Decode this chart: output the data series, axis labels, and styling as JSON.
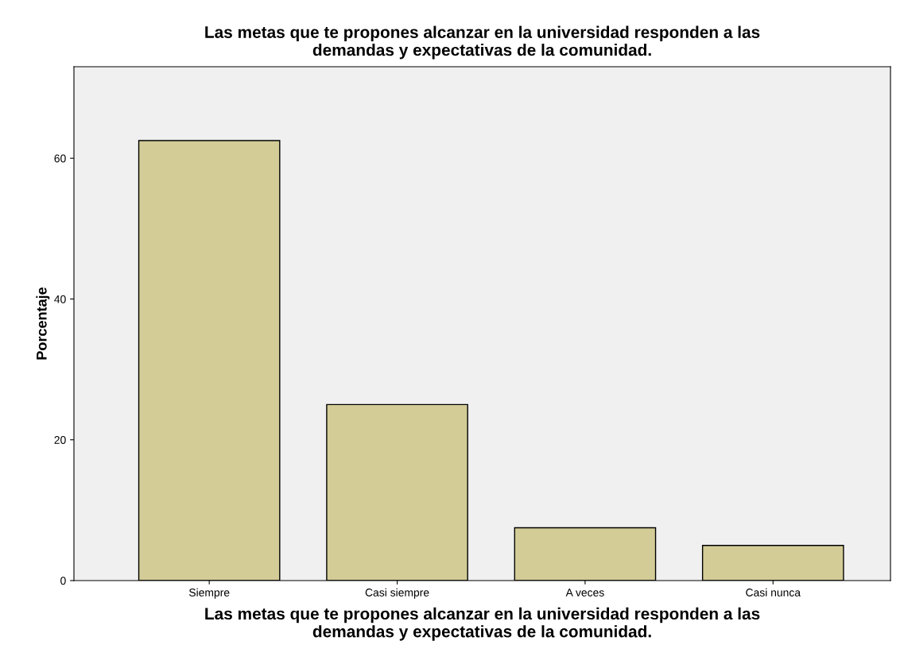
{
  "chart_data": {
    "type": "bar",
    "title": "Las metas que te propones alcanzar en la universidad responden a las\ndemandas y expectativas de la comunidad.",
    "xlabel": "Las metas que te propones alcanzar en la universidad responden a las\ndemandas y expectativas de la comunidad.",
    "ylabel": "Porcentaje",
    "categories": [
      "Siempre",
      "Casi siempre",
      "A veces",
      "Casi nunca"
    ],
    "values": [
      62.5,
      25,
      7.5,
      5
    ],
    "color": "#d3cc97",
    "ylim": [
      0,
      73
    ],
    "yticks": [
      0,
      20,
      40,
      60
    ],
    "grid": false
  }
}
